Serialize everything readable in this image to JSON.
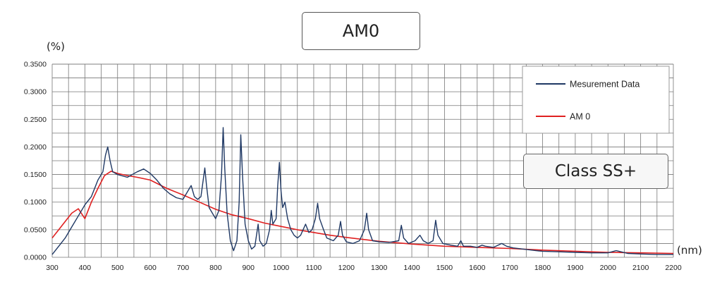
{
  "chart_data": {
    "type": "line",
    "title": "AM0",
    "badge": "Class SS+",
    "ylabel": "(%)",
    "xlabel": "(nm)",
    "xlim": [
      300,
      2200
    ],
    "ylim": [
      0,
      0.35
    ],
    "x_ticks": [
      300,
      400,
      500,
      600,
      700,
      800,
      900,
      1000,
      1100,
      1200,
      1300,
      1400,
      1500,
      1600,
      1700,
      1800,
      1900,
      2000,
      2100,
      2200
    ],
    "y_ticks": [
      "0.0000",
      "0.0500",
      "0.1000",
      "0.1500",
      "0.2000",
      "0.2500",
      "0.3000",
      "0.3500"
    ],
    "grid": true,
    "legend_position": "top-right",
    "series": [
      {
        "name": "Mesurement Data",
        "color": "#1f3864",
        "points": [
          [
            300,
            0.005
          ],
          [
            320,
            0.02
          ],
          [
            340,
            0.035
          ],
          [
            360,
            0.055
          ],
          [
            380,
            0.075
          ],
          [
            400,
            0.095
          ],
          [
            420,
            0.11
          ],
          [
            440,
            0.14
          ],
          [
            455,
            0.155
          ],
          [
            463,
            0.185
          ],
          [
            470,
            0.2
          ],
          [
            477,
            0.175
          ],
          [
            485,
            0.155
          ],
          [
            500,
            0.15
          ],
          [
            530,
            0.145
          ],
          [
            560,
            0.155
          ],
          [
            580,
            0.16
          ],
          [
            600,
            0.152
          ],
          [
            620,
            0.14
          ],
          [
            640,
            0.125
          ],
          [
            660,
            0.115
          ],
          [
            680,
            0.108
          ],
          [
            700,
            0.105
          ],
          [
            715,
            0.12
          ],
          [
            725,
            0.13
          ],
          [
            735,
            0.11
          ],
          [
            745,
            0.105
          ],
          [
            755,
            0.11
          ],
          [
            762,
            0.14
          ],
          [
            767,
            0.162
          ],
          [
            772,
            0.13
          ],
          [
            780,
            0.09
          ],
          [
            790,
            0.08
          ],
          [
            800,
            0.07
          ],
          [
            810,
            0.085
          ],
          [
            818,
            0.15
          ],
          [
            823,
            0.235
          ],
          [
            828,
            0.16
          ],
          [
            835,
            0.08
          ],
          [
            845,
            0.03
          ],
          [
            855,
            0.012
          ],
          [
            865,
            0.03
          ],
          [
            872,
            0.1
          ],
          [
            877,
            0.222
          ],
          [
            882,
            0.15
          ],
          [
            890,
            0.06
          ],
          [
            900,
            0.03
          ],
          [
            910,
            0.015
          ],
          [
            920,
            0.02
          ],
          [
            930,
            0.06
          ],
          [
            935,
            0.03
          ],
          [
            945,
            0.02
          ],
          [
            955,
            0.025
          ],
          [
            965,
            0.05
          ],
          [
            970,
            0.085
          ],
          [
            975,
            0.06
          ],
          [
            985,
            0.07
          ],
          [
            990,
            0.13
          ],
          [
            995,
            0.172
          ],
          [
            1000,
            0.12
          ],
          [
            1005,
            0.09
          ],
          [
            1012,
            0.1
          ],
          [
            1020,
            0.07
          ],
          [
            1030,
            0.05
          ],
          [
            1040,
            0.04
          ],
          [
            1050,
            0.035
          ],
          [
            1060,
            0.04
          ],
          [
            1075,
            0.06
          ],
          [
            1085,
            0.045
          ],
          [
            1095,
            0.05
          ],
          [
            1105,
            0.07
          ],
          [
            1112,
            0.098
          ],
          [
            1118,
            0.07
          ],
          [
            1130,
            0.05
          ],
          [
            1140,
            0.035
          ],
          [
            1160,
            0.03
          ],
          [
            1175,
            0.04
          ],
          [
            1182,
            0.065
          ],
          [
            1188,
            0.04
          ],
          [
            1200,
            0.028
          ],
          [
            1220,
            0.025
          ],
          [
            1240,
            0.03
          ],
          [
            1255,
            0.05
          ],
          [
            1262,
            0.08
          ],
          [
            1268,
            0.05
          ],
          [
            1280,
            0.03
          ],
          [
            1300,
            0.028
          ],
          [
            1330,
            0.027
          ],
          [
            1360,
            0.03
          ],
          [
            1368,
            0.058
          ],
          [
            1375,
            0.035
          ],
          [
            1390,
            0.025
          ],
          [
            1410,
            0.03
          ],
          [
            1425,
            0.04
          ],
          [
            1435,
            0.03
          ],
          [
            1450,
            0.025
          ],
          [
            1465,
            0.03
          ],
          [
            1473,
            0.067
          ],
          [
            1480,
            0.04
          ],
          [
            1495,
            0.025
          ],
          [
            1520,
            0.022
          ],
          [
            1540,
            0.02
          ],
          [
            1550,
            0.03
          ],
          [
            1558,
            0.02
          ],
          [
            1580,
            0.02
          ],
          [
            1600,
            0.018
          ],
          [
            1615,
            0.022
          ],
          [
            1625,
            0.02
          ],
          [
            1650,
            0.018
          ],
          [
            1675,
            0.025
          ],
          [
            1690,
            0.02
          ],
          [
            1710,
            0.017
          ],
          [
            1740,
            0.015
          ],
          [
            1780,
            0.012
          ],
          [
            1800,
            0.011
          ],
          [
            1850,
            0.01
          ],
          [
            1900,
            0.009
          ],
          [
            1950,
            0.008
          ],
          [
            2000,
            0.008
          ],
          [
            2025,
            0.012
          ],
          [
            2040,
            0.01
          ],
          [
            2060,
            0.007
          ],
          [
            2100,
            0.006
          ],
          [
            2150,
            0.005
          ],
          [
            2200,
            0.005
          ]
        ]
      },
      {
        "name": "AM 0",
        "color": "#e02020",
        "points": [
          [
            300,
            0.035
          ],
          [
            320,
            0.05
          ],
          [
            340,
            0.065
          ],
          [
            360,
            0.08
          ],
          [
            380,
            0.088
          ],
          [
            400,
            0.07
          ],
          [
            420,
            0.1
          ],
          [
            440,
            0.125
          ],
          [
            460,
            0.148
          ],
          [
            480,
            0.156
          ],
          [
            500,
            0.152
          ],
          [
            530,
            0.148
          ],
          [
            560,
            0.145
          ],
          [
            600,
            0.14
          ],
          [
            650,
            0.125
          ],
          [
            700,
            0.113
          ],
          [
            750,
            0.1
          ],
          [
            800,
            0.087
          ],
          [
            850,
            0.077
          ],
          [
            900,
            0.07
          ],
          [
            950,
            0.062
          ],
          [
            1000,
            0.056
          ],
          [
            1050,
            0.05
          ],
          [
            1100,
            0.045
          ],
          [
            1150,
            0.04
          ],
          [
            1200,
            0.036
          ],
          [
            1300,
            0.029
          ],
          [
            1400,
            0.024
          ],
          [
            1500,
            0.02
          ],
          [
            1600,
            0.018
          ],
          [
            1700,
            0.016
          ],
          [
            1800,
            0.013
          ],
          [
            1900,
            0.011
          ],
          [
            2000,
            0.009
          ],
          [
            2100,
            0.008
          ],
          [
            2200,
            0.007
          ]
        ]
      }
    ]
  }
}
